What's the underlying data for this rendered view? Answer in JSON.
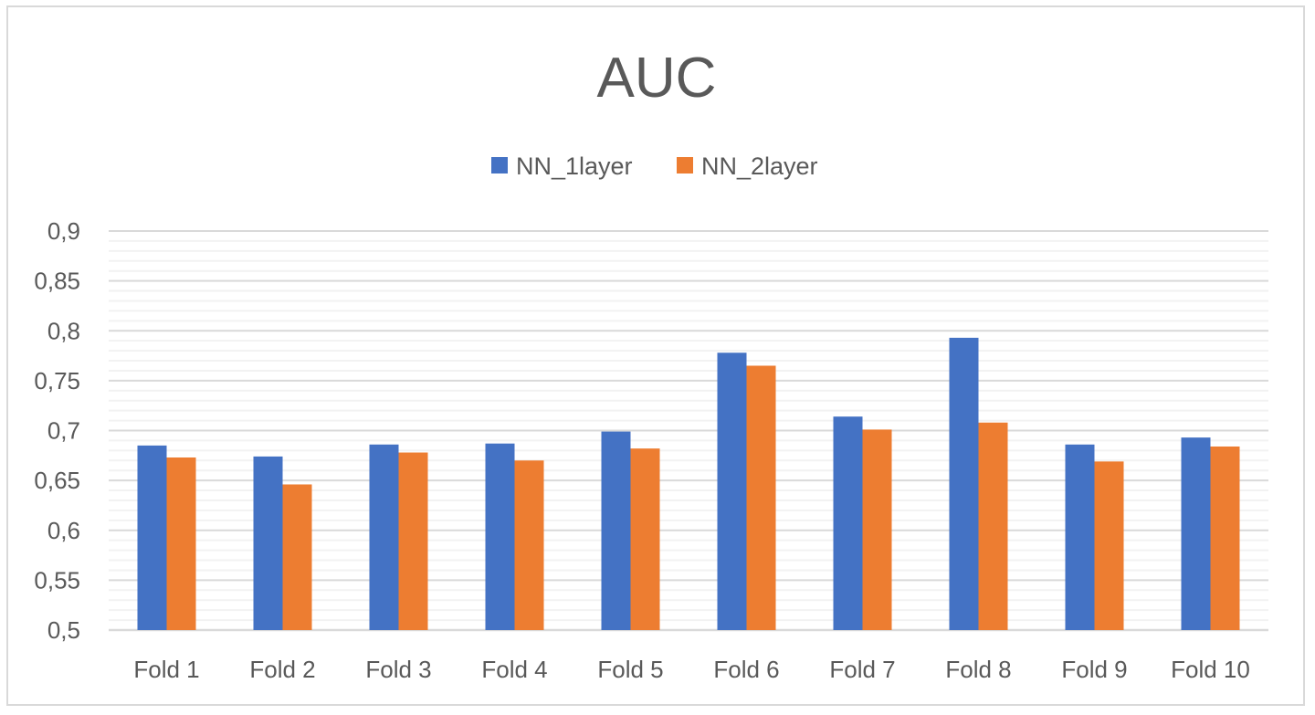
{
  "chart_data": {
    "type": "bar",
    "title": "AUC",
    "xlabel": "",
    "ylabel": "",
    "categories": [
      "Fold 1",
      "Fold 2",
      "Fold 3",
      "Fold 4",
      "Fold 5",
      "Fold 6",
      "Fold 7",
      "Fold 8",
      "Fold 9",
      "Fold 10"
    ],
    "series": [
      {
        "name": "NN_1layer",
        "color": "#4472c4",
        "values": [
          0.685,
          0.674,
          0.686,
          0.687,
          0.699,
          0.778,
          0.714,
          0.793,
          0.686,
          0.693
        ]
      },
      {
        "name": "NN_2layer",
        "color": "#ed7d31",
        "values": [
          0.673,
          0.646,
          0.678,
          0.67,
          0.682,
          0.765,
          0.701,
          0.708,
          0.669,
          0.684
        ]
      }
    ],
    "ylim": [
      0.5,
      0.9
    ],
    "yticks": [
      "0,5",
      "0,55",
      "0,6",
      "0,65",
      "0,7",
      "0,75",
      "0,8",
      "0,85",
      "0,9"
    ],
    "ytick_values": [
      0.5,
      0.55,
      0.6,
      0.65,
      0.7,
      0.75,
      0.8,
      0.85,
      0.9
    ],
    "grid": true,
    "legend_position": "top-center"
  }
}
